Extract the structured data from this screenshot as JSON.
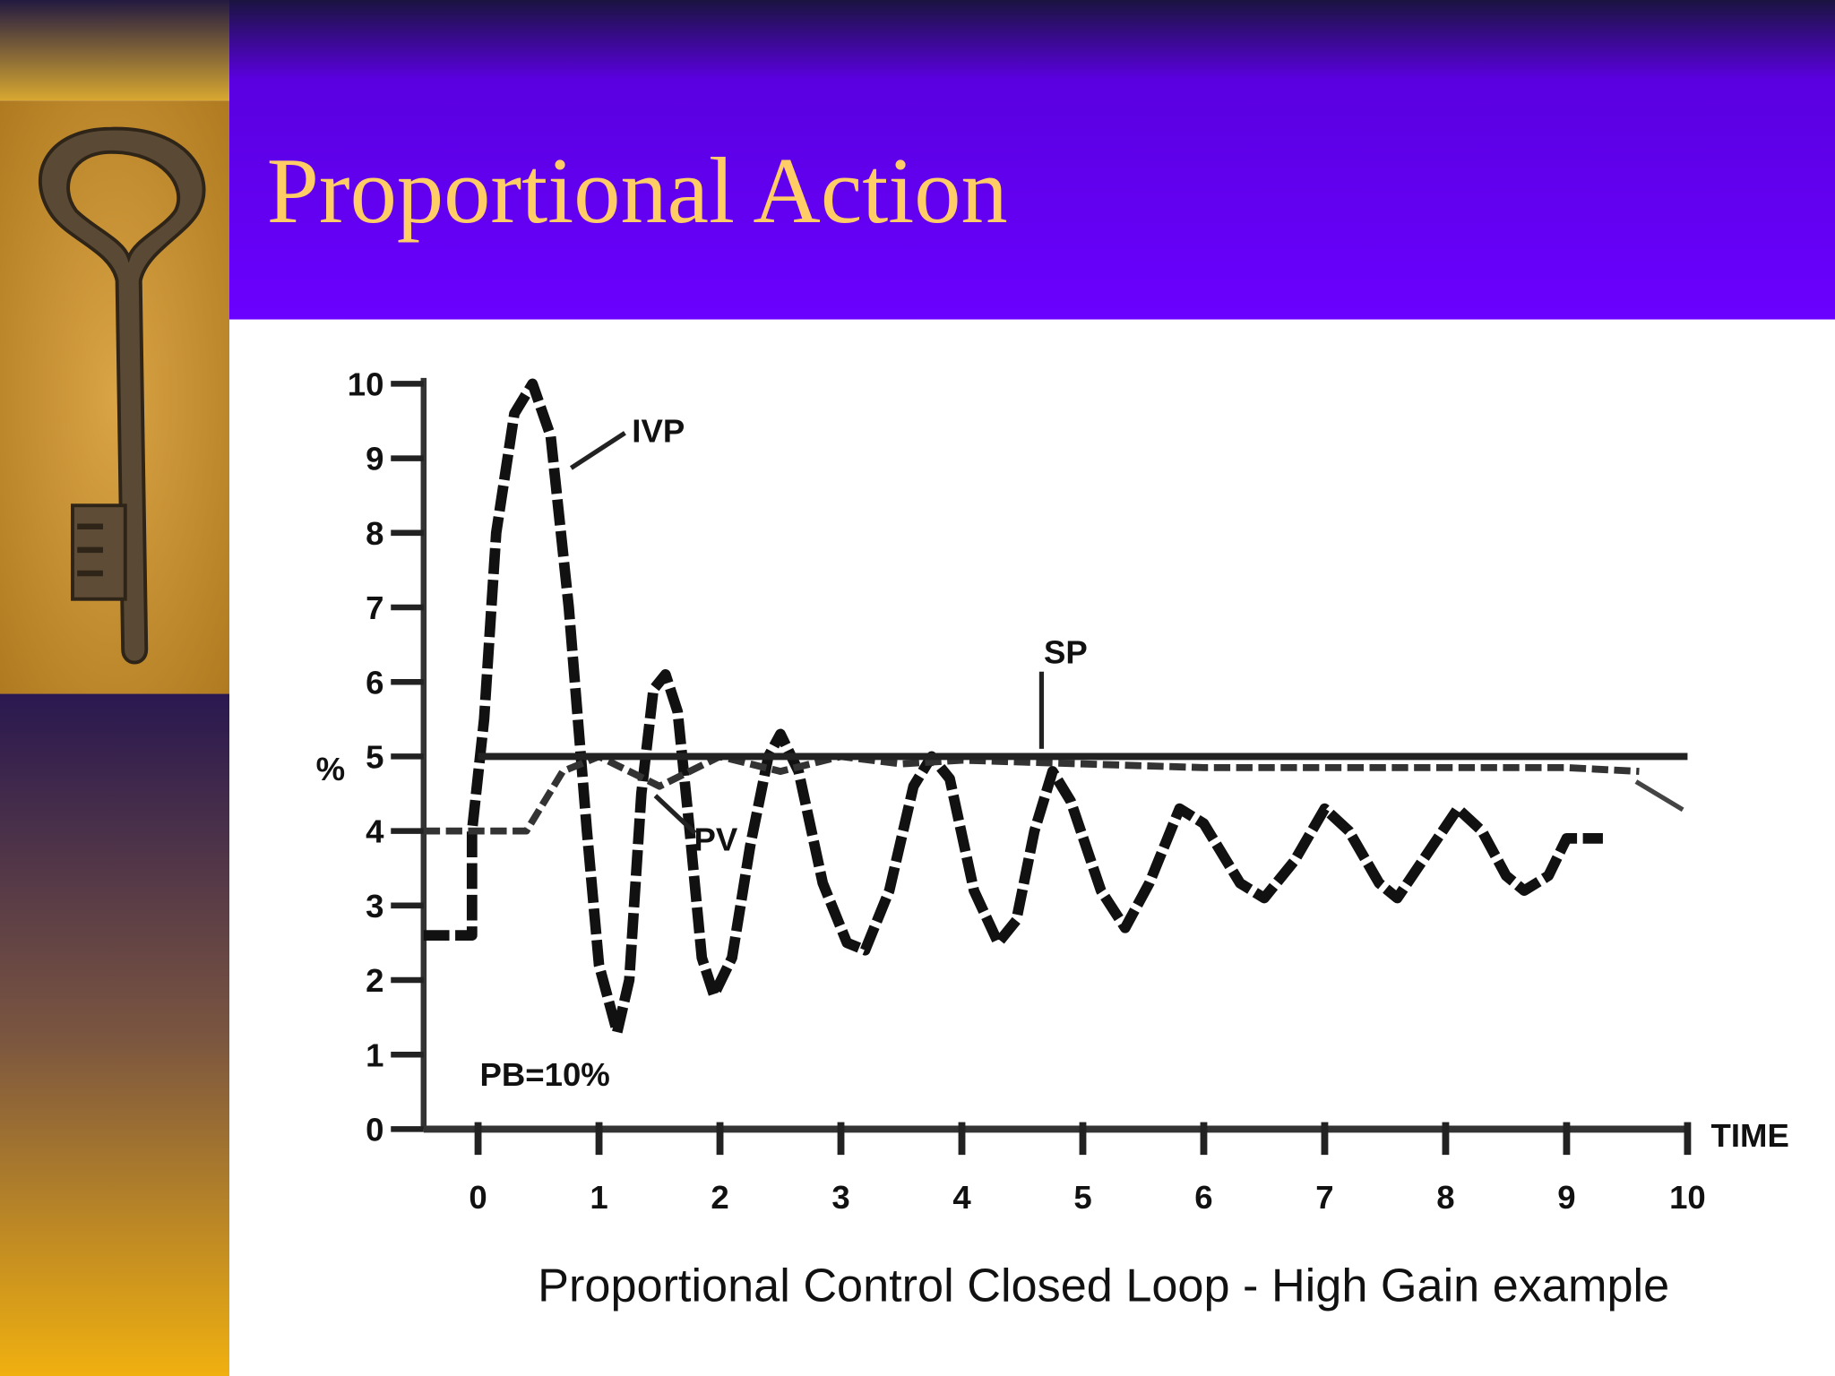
{
  "chart_data": {
    "type": "line",
    "title": "Proportional Action",
    "caption": "Proportional Control Closed Loop - High Gain example",
    "x_label": "TIME",
    "y_label": "%",
    "annotation": "PB=10%",
    "xlim": [
      -0.45,
      10
    ],
    "xticks": [
      0,
      1,
      2,
      3,
      4,
      5,
      6,
      7,
      8,
      9,
      10
    ],
    "ylim": [
      0,
      10
    ],
    "yticks": [
      0,
      1,
      2,
      3,
      4,
      5,
      6,
      7,
      8,
      9,
      10
    ],
    "series": [
      {
        "name": "IVP",
        "color": "#111111",
        "dashed": true,
        "x": [
          -0.45,
          -0.05,
          -0.05,
          0.05,
          0.15,
          0.3,
          0.45,
          0.6,
          0.75,
          0.9,
          1.0,
          1.15,
          1.25,
          1.35,
          1.45,
          1.55,
          1.65,
          1.75,
          1.85,
          1.95,
          2.1,
          2.25,
          2.4,
          2.5,
          2.65,
          2.85,
          3.05,
          3.2,
          3.4,
          3.6,
          3.75,
          3.9,
          4.1,
          4.3,
          4.45,
          4.6,
          4.75,
          4.9,
          5.15,
          5.35,
          5.55,
          5.8,
          6.0,
          6.3,
          6.5,
          6.75,
          7.0,
          7.2,
          7.45,
          7.6,
          7.85,
          8.1,
          8.3,
          8.5,
          8.65,
          8.85,
          9.0,
          9.3
        ],
        "values": [
          2.6,
          2.6,
          4.0,
          5.5,
          8,
          9.6,
          10,
          9.3,
          7,
          4,
          2.2,
          1.3,
          2,
          4.5,
          5.9,
          6.1,
          5.6,
          4,
          2.3,
          1.8,
          2.3,
          3.8,
          5.0,
          5.3,
          4.8,
          3.3,
          2.5,
          2.4,
          3.2,
          4.6,
          5.0,
          4.7,
          3.2,
          2.5,
          2.8,
          4.0,
          4.8,
          4.4,
          3.2,
          2.7,
          3.3,
          4.3,
          4.1,
          3.3,
          3.1,
          3.6,
          4.3,
          4.0,
          3.3,
          3.1,
          3.7,
          4.3,
          4.0,
          3.4,
          3.2,
          3.4,
          3.9,
          3.9
        ]
      },
      {
        "name": "PV",
        "color": "#333333",
        "dashed": true,
        "x": [
          -0.45,
          0.4,
          0.55,
          0.7,
          1.0,
          1.5,
          2.0,
          2.5,
          3.0,
          3.5,
          4.0,
          5.0,
          6.0,
          7.0,
          9.0,
          9.6
        ],
        "values": [
          4,
          4,
          4.4,
          4.8,
          5.0,
          4.6,
          5.0,
          4.8,
          5.0,
          4.9,
          4.95,
          4.9,
          4.85,
          4.85,
          4.85,
          4.8
        ]
      },
      {
        "name": "SP",
        "color": "#222222",
        "dashed": false,
        "x": [
          0,
          10
        ],
        "values": [
          5,
          5
        ]
      }
    ]
  }
}
